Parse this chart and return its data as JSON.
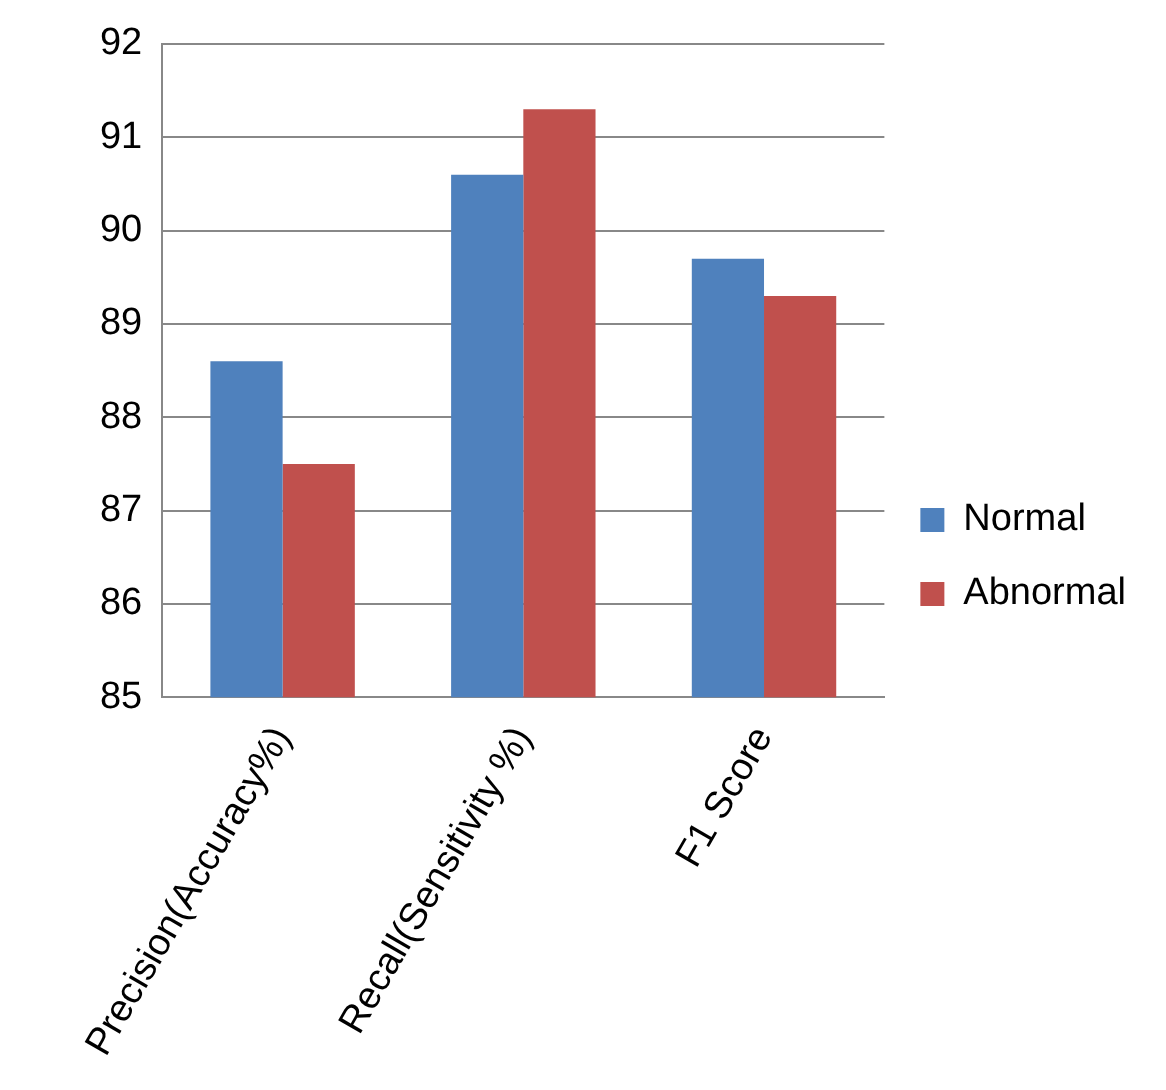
{
  "chart_data": {
    "type": "bar",
    "categories": [
      "Precision(Accuracy%)",
      "Recall(Sensitivity %)",
      "F1 Score"
    ],
    "series": [
      {
        "name": "Normal",
        "color": "#4f81bd",
        "values": [
          88.6,
          90.6,
          89.7
        ]
      },
      {
        "name": "Abnormal",
        "color": "#c0504d",
        "values": [
          87.5,
          91.3,
          89.3
        ]
      }
    ],
    "ylim": [
      85,
      92
    ],
    "yticks": [
      85,
      86,
      87,
      88,
      89,
      90,
      91,
      92
    ],
    "grid": "y",
    "legend": "right"
  }
}
